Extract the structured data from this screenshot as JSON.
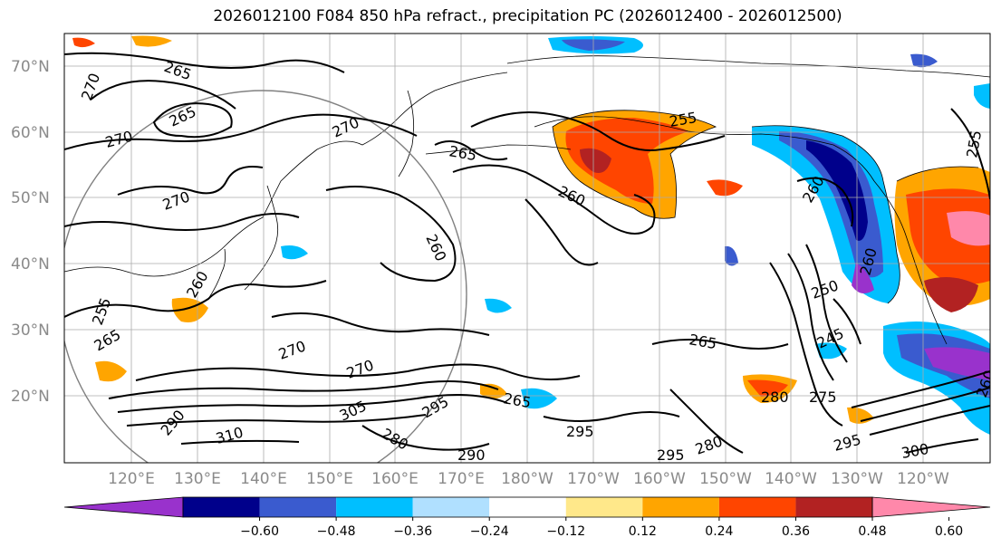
{
  "title": "2026012100 F084 850 hPa refract., precipitation PC (2026012400 - 2026012500)",
  "lat_labels": [
    "70°N",
    "60°N",
    "50°N",
    "40°N",
    "30°N",
    "20°N"
  ],
  "lon_labels": [
    "120°E",
    "130°E",
    "140°E",
    "150°E",
    "160°E",
    "170°E",
    "180°W",
    "170°W",
    "160°W",
    "150°W",
    "140°W",
    "130°W",
    "120°W"
  ],
  "contour_labels": [
    "265",
    "270",
    "265",
    "270",
    "270",
    "265",
    "255",
    "260",
    "270",
    "260",
    "260",
    "255",
    "265",
    "270",
    "260",
    "250",
    "245",
    "265",
    "270",
    "295",
    "265",
    "280",
    "275",
    "290",
    "310",
    "305",
    "280",
    "295",
    "290",
    "295",
    "280",
    "295",
    "300",
    "260",
    "255",
    "260"
  ],
  "colorbar": {
    "ticks": [
      "−0.60",
      "−0.48",
      "−0.36",
      "−0.24",
      "−0.12",
      "0.12",
      "0.24",
      "0.36",
      "0.48",
      "0.60"
    ],
    "colors": [
      "#9932cc",
      "#00008b",
      "#3a5bcf",
      "#00bfff",
      "#b0e0ff",
      "#ffffff",
      "#ffe88a",
      "#ffa500",
      "#ff4500",
      "#b22222",
      "#ff88aa"
    ]
  }
}
